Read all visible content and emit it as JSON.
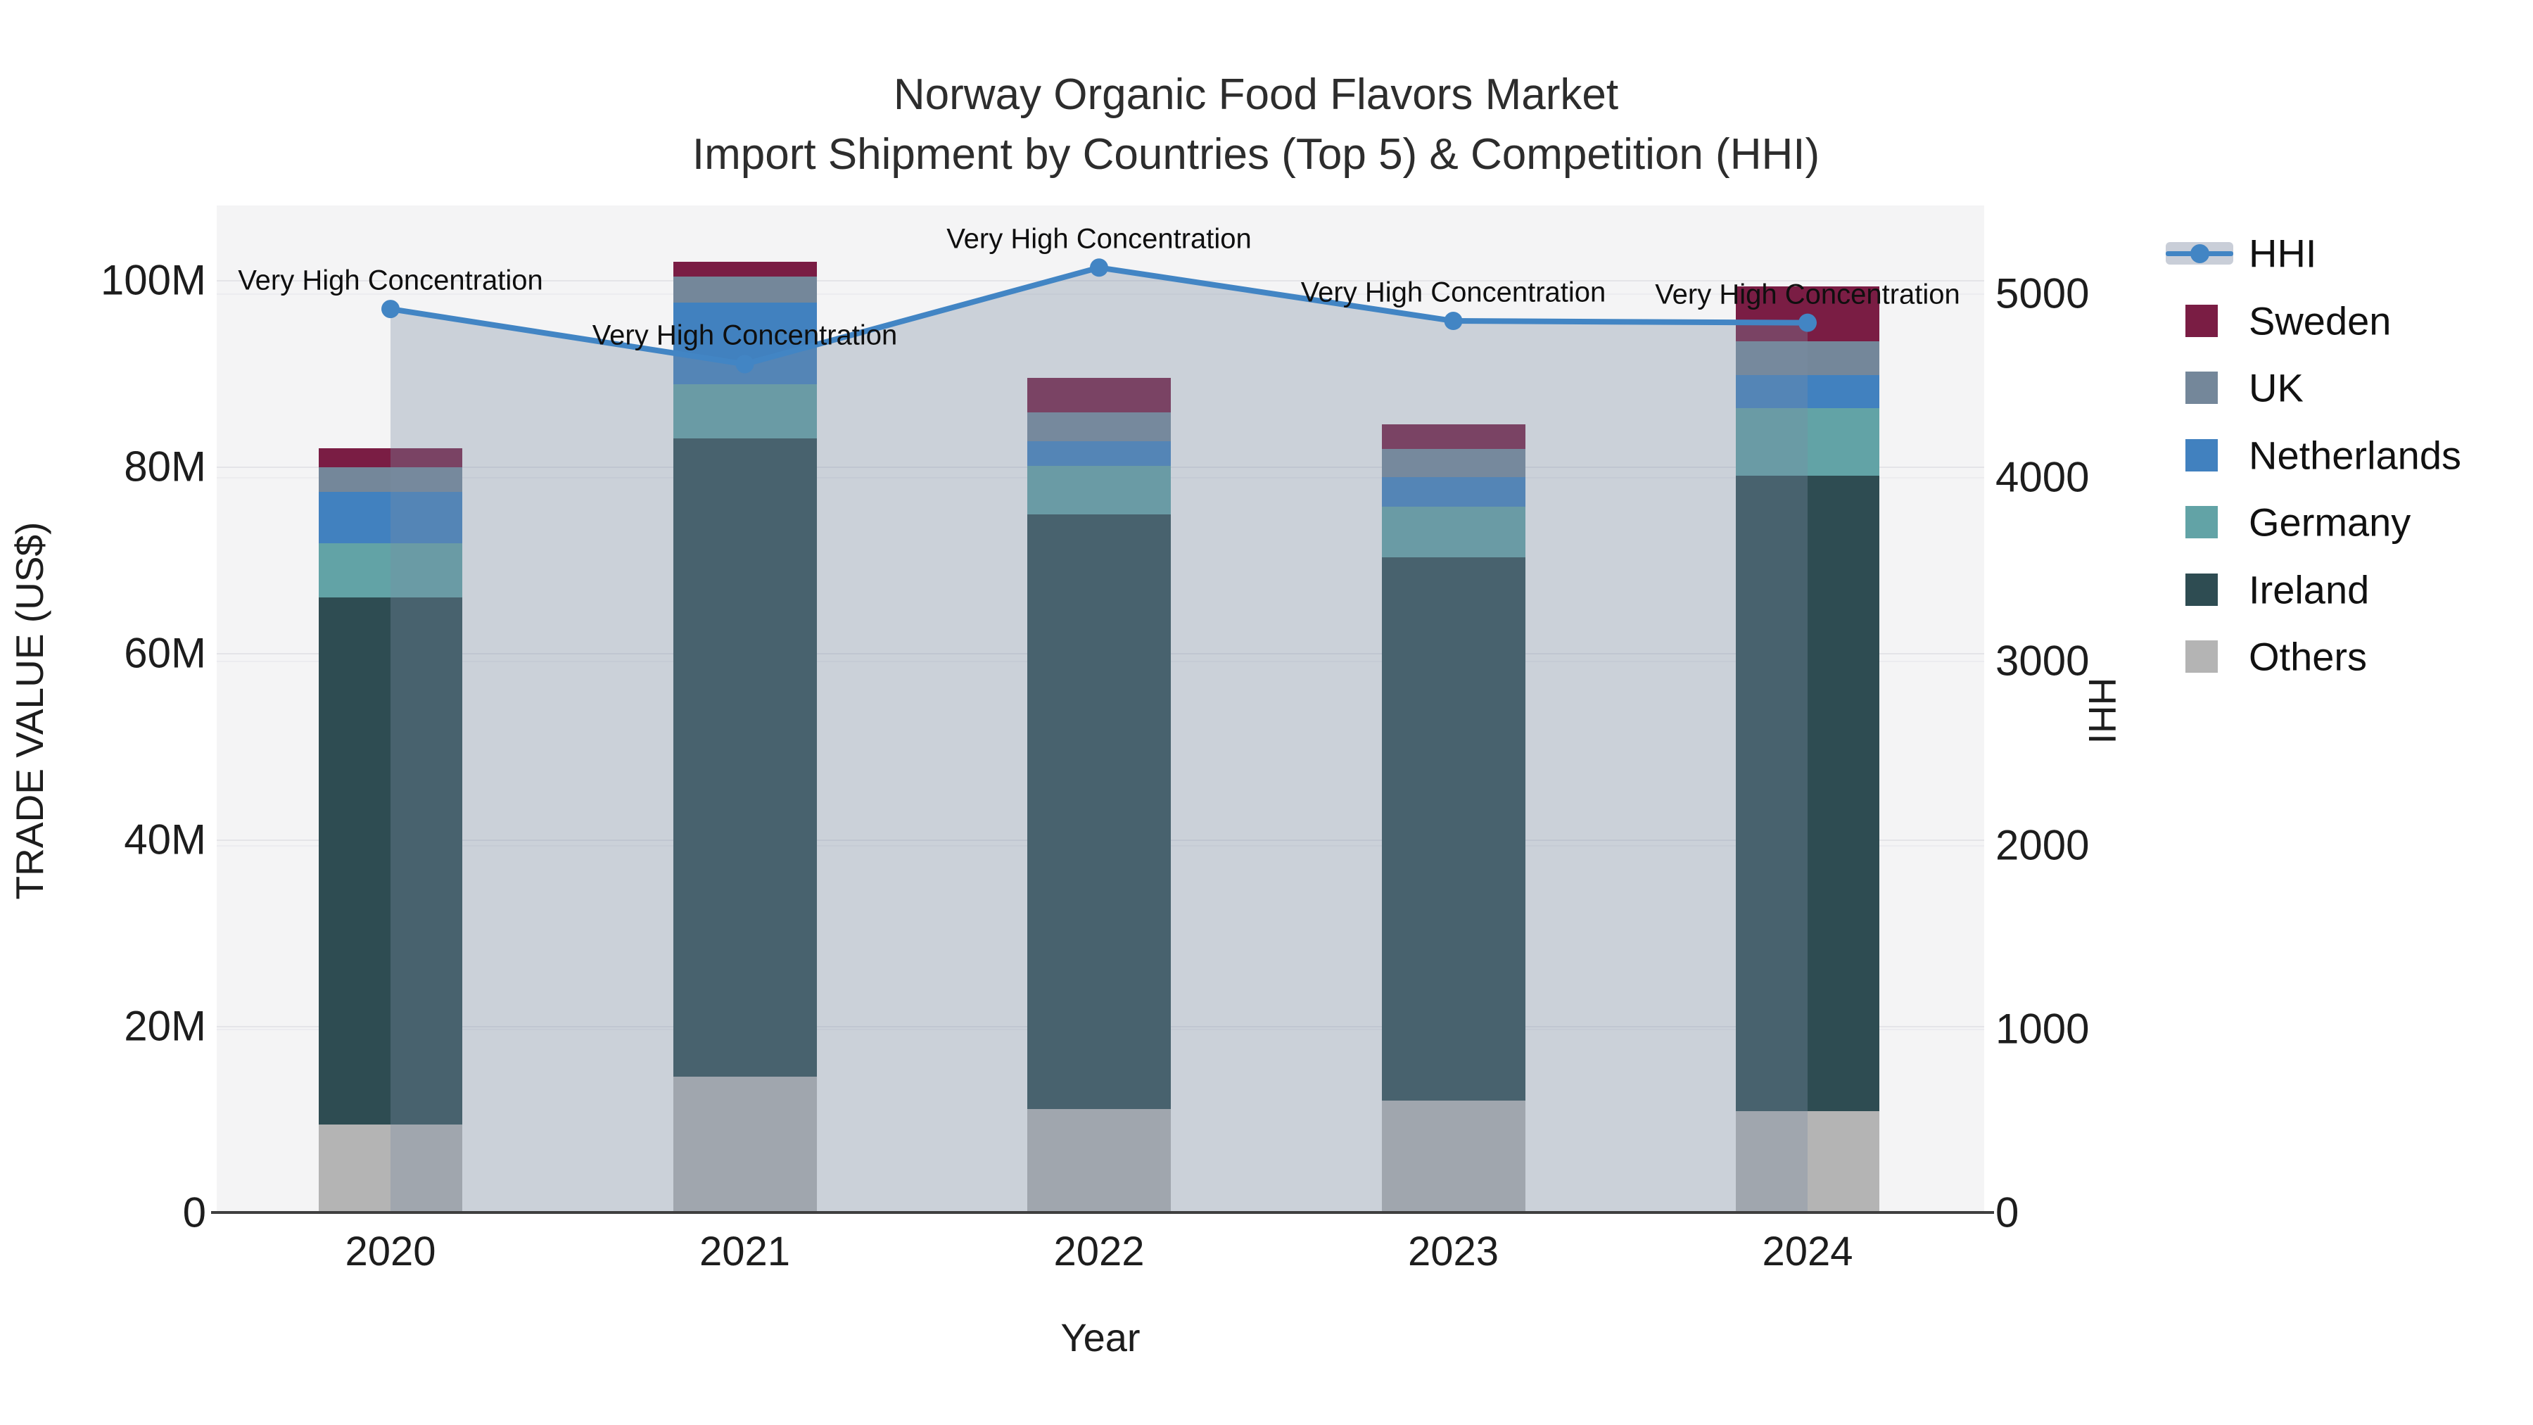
{
  "title": {
    "line1": "Norway Organic Food Flavors Market",
    "line2": "Import Shipment by Countries (Top 5) & Competition (HHI)"
  },
  "axes": {
    "x": {
      "title": "Year",
      "ticks": [
        "2020",
        "2021",
        "2022",
        "2023",
        "2024"
      ]
    },
    "y_left": {
      "title": "TRADE VALUE (US$)",
      "ticks": [
        "0",
        "20M",
        "40M",
        "60M",
        "80M",
        "100M"
      ]
    },
    "y_right": {
      "title": "HHI",
      "ticks": [
        "0",
        "1000",
        "2000",
        "3000",
        "4000",
        "5000"
      ]
    }
  },
  "legend": {
    "items": [
      {
        "label": "HHI",
        "type": "line",
        "color": "#4285c4"
      },
      {
        "label": "Sweden",
        "type": "square",
        "color": "#7a1d44"
      },
      {
        "label": "UK",
        "type": "square",
        "color": "#74879a"
      },
      {
        "label": "Netherlands",
        "type": "square",
        "color": "#4181bf"
      },
      {
        "label": "Germany",
        "type": "square",
        "color": "#62a3a6"
      },
      {
        "label": "Ireland",
        "type": "square",
        "color": "#2e4c52"
      },
      {
        "label": "Others",
        "type": "square",
        "color": "#b4b4b4"
      }
    ]
  },
  "chart_data": {
    "type": "bar",
    "subtype": "stacked-bars-with-line-overlay",
    "title": "Norway Organic Food Flavors Market Import Shipment by Countries (Top 5) & Competition (HHI)",
    "xlabel": "Year",
    "ylabel": "TRADE VALUE (US$)",
    "ylabel_right": "HHI",
    "categories": [
      "2020",
      "2021",
      "2022",
      "2023",
      "2024"
    ],
    "value_unit": "million US$",
    "ylim_left": [
      0,
      108
    ],
    "ylim_right": [
      0,
      5478
    ],
    "grid": true,
    "legend_position": "right",
    "series": [
      {
        "name": "Sweden",
        "color": "#7a1d44",
        "values": [
          2.1,
          1.6,
          3.7,
          2.6,
          5.9
        ]
      },
      {
        "name": "UK",
        "color": "#74879a",
        "values": [
          2.6,
          2.8,
          3.1,
          3.0,
          3.6
        ]
      },
      {
        "name": "Netherlands",
        "color": "#4181bf",
        "values": [
          5.5,
          8.8,
          2.6,
          3.2,
          3.5
        ]
      },
      {
        "name": "Germany",
        "color": "#62a3a6",
        "values": [
          5.8,
          5.8,
          5.2,
          5.4,
          7.3
        ]
      },
      {
        "name": "Ireland",
        "color": "#2e4c52",
        "values": [
          56.6,
          68.4,
          63.8,
          58.3,
          68.1
        ]
      },
      {
        "name": "Others",
        "color": "#b4b4b4",
        "values": [
          9.4,
          14.6,
          11.1,
          12.0,
          10.9
        ]
      }
    ],
    "bar_totals": [
      82.0,
      102.0,
      89.5,
      84.5,
      99.3
    ],
    "line_series": {
      "name": "HHI",
      "color": "#4285c4",
      "area_fill_color": "rgba(122,140,164,0.34)",
      "values": [
        4915,
        4615,
        5140,
        4850,
        4840
      ]
    },
    "point_annotations": [
      "Very High Concentration",
      "Very High Concentration",
      "Very High Concentration",
      "Very High Concentration",
      "Very High Concentration"
    ]
  },
  "colors": {
    "plot_background": "#f4f4f5",
    "page_background": "#ffffff",
    "axis_line": "#3f3f3f",
    "grid_left": "#e4e4e8",
    "grid_right": "#ececef",
    "annotation_text": "#0f0f0f",
    "legend_band": "#c9ced8"
  }
}
